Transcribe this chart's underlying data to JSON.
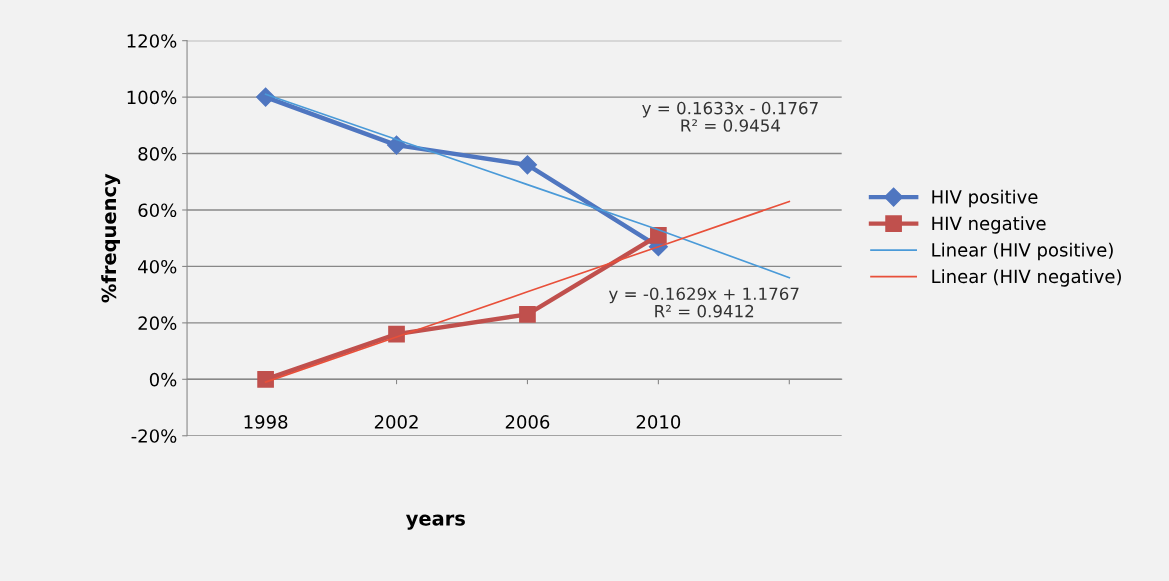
{
  "chart_data": {
    "type": "line",
    "xlabel": "years",
    "ylabel": "%frequency",
    "categories": [
      "1998",
      "2002",
      "2006",
      "2010",
      null
    ],
    "series": [
      {
        "name": "HIV positive",
        "color": "#4f76c0",
        "values": [
          100,
          83,
          76,
          47,
          null
        ],
        "marker": "diamond",
        "line_style": "solid"
      },
      {
        "name": "HIV negative",
        "color": "#c0504d",
        "values": [
          0,
          16,
          23,
          51,
          null
        ],
        "marker": "square",
        "line_style": "solid"
      },
      {
        "name": "Linear (HIV positive)",
        "color": "#4a9ad8",
        "values": [
          101,
          85,
          69,
          53,
          36
        ],
        "marker": "none",
        "line_style": "solid"
      },
      {
        "name": "Linear (HIV negative)",
        "color": "#e8503a",
        "values": [
          -1,
          15,
          31,
          47,
          63
        ],
        "marker": "none",
        "line_style": "solid"
      }
    ],
    "ylim": [
      -20,
      120
    ],
    "yticks": [
      {
        "value": -20,
        "label": "-20%"
      },
      {
        "value": 0,
        "label": "0%"
      },
      {
        "value": 20,
        "label": "20%"
      },
      {
        "value": 40,
        "label": "40%"
      },
      {
        "value": 60,
        "label": "60%"
      },
      {
        "value": 80,
        "label": "80%"
      },
      {
        "value": 100,
        "label": "100%"
      },
      {
        "value": 120,
        "label": "120%"
      }
    ],
    "grid": "y",
    "legend": "right",
    "annotations": [
      "y = 0.1633x - 0.1767\nR² = 0.9454",
      "y = -0.1629x + 1.1767\nR² = 0.9412"
    ]
  }
}
